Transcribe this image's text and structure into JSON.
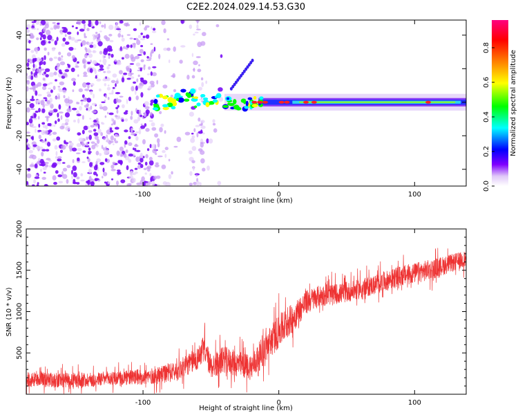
{
  "title": "C2E2.2024.029.14.53.G30",
  "chart_data": [
    {
      "type": "heatmap",
      "xlabel": "Height of straight line (km)",
      "ylabel": "Frequency (Hz)",
      "xlim": [
        -186,
        138
      ],
      "ylim": [
        -50,
        49
      ],
      "x_ticks": [
        -100,
        0,
        100
      ],
      "y_ticks": [
        -40,
        -20,
        0,
        20,
        40
      ],
      "colorbar": {
        "label": "Normalized spectral amplitude",
        "range": [
          0,
          0.96
        ],
        "ticks": [
          "0.0",
          "0.2",
          "0.4",
          "0.6",
          "0.8"
        ],
        "colormap": [
          "#ffffff",
          "#e0c8f8",
          "#8000ff",
          "#0000ff",
          "#00ffff",
          "#00ff00",
          "#ffff00",
          "#ff8000",
          "#ff0000",
          "#ff0080"
        ]
      },
      "features": {
        "noise_region_x": [
          -186,
          -40
        ],
        "signal_line_frequency_hz": 0,
        "signal_start_x": -90,
        "peak_amplitude_x": [
          -18,
          112
        ]
      }
    },
    {
      "type": "line",
      "xlabel": "Height of straight line (km)",
      "ylabel": "SNR (10 * v/v)",
      "xlim": [
        -186,
        138
      ],
      "ylim": [
        0,
        2000
      ],
      "x_ticks": [
        -100,
        0,
        100
      ],
      "y_ticks": [
        500,
        1000,
        1500,
        2000
      ],
      "series": [
        {
          "color": "#ee3333",
          "trend": {
            "x": [
              -186,
              -150,
              -120,
              -90,
              -75,
              -60,
              -55,
              -50,
              -40,
              -30,
              -20,
              -10,
              0,
              10,
              20,
              30,
              50,
              70,
              90,
              110,
              138
            ],
            "y": [
              180,
              170,
              190,
              220,
              280,
              430,
              560,
              330,
              420,
              360,
              330,
              560,
              760,
              920,
              1110,
              1190,
              1230,
              1320,
              1430,
              1500,
              1640
            ]
          },
          "noise_amplitude": [
            180,
            180,
            180,
            200,
            240,
            280,
            320,
            300,
            320,
            320,
            320,
            380,
            420,
            360,
            300,
            260,
            240,
            240,
            250,
            250,
            200
          ]
        }
      ]
    }
  ]
}
